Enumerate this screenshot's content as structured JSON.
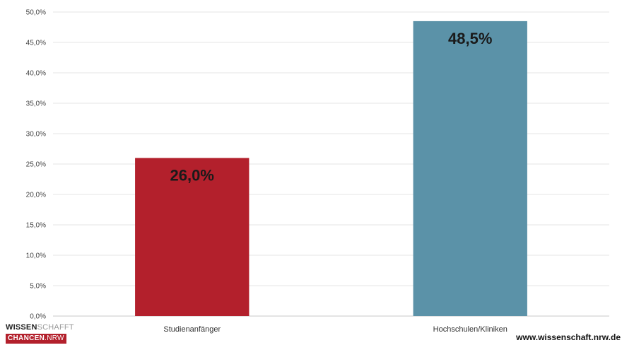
{
  "chart_data": {
    "type": "bar",
    "categories": [
      "Studienanfänger",
      "Hochschulen/Kliniken"
    ],
    "values": [
      26.0,
      48.5
    ],
    "value_labels": [
      "26,0%",
      "48,5%"
    ],
    "colors": [
      "#b3202c",
      "#5b92a8"
    ],
    "ylim": [
      0,
      50
    ],
    "yticks": [
      0,
      5,
      10,
      15,
      20,
      25,
      30,
      35,
      40,
      45,
      50
    ],
    "ytick_labels": [
      "0,0%",
      "5,0%",
      "10,0%",
      "15,0%",
      "20,0%",
      "25,0%",
      "30,0%",
      "35,0%",
      "40,0%",
      "45,0%",
      "50,0%"
    ],
    "grid": true,
    "legend": "none"
  },
  "branding": {
    "logo_line1_bold": "WISSEN",
    "logo_line1_light": "SCHAFFT",
    "logo_line2_bold": "CHANCEN",
    "logo_line2_light": ".NRW",
    "url": "www.wissenschaft.nrw.de"
  }
}
